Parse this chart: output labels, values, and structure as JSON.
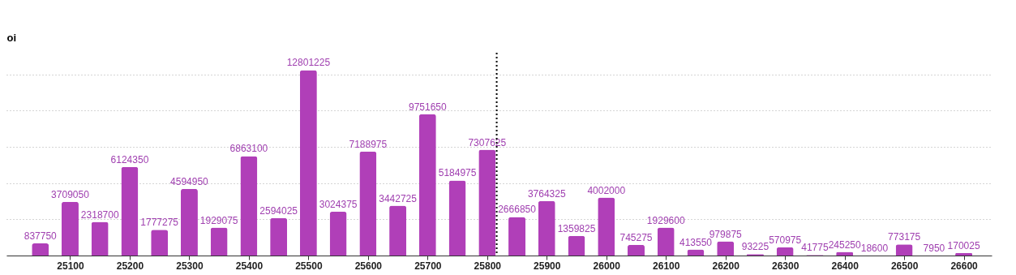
{
  "chart_data": {
    "type": "bar",
    "ylabel": "oi",
    "x": [
      25050,
      25100,
      25150,
      25200,
      25250,
      25300,
      25350,
      25400,
      25450,
      25500,
      25550,
      25600,
      25650,
      25700,
      25750,
      25800,
      25850,
      25900,
      25950,
      26000,
      26050,
      26100,
      26150,
      26200,
      26250,
      26300,
      26350,
      26400,
      26450,
      26500,
      26550,
      26600
    ],
    "values": [
      837750,
      3709050,
      2318700,
      6124350,
      1777275,
      4594950,
      1929075,
      6863100,
      2594025,
      12801225,
      3024375,
      7188975,
      3442725,
      9751650,
      5184975,
      7307625,
      2666850,
      3764325,
      1359825,
      4002000,
      745275,
      1929600,
      413550,
      979875,
      93225,
      570975,
      41775,
      245250,
      18600,
      773175,
      7950,
      170025
    ],
    "color": "#b03fb8",
    "data_labels": true,
    "xlim": [
      25000,
      26640
    ],
    "xticks": [
      25100,
      25200,
      25300,
      25400,
      25500,
      25600,
      25700,
      25800,
      25900,
      26000,
      26100,
      26200,
      26300,
      26400,
      26500,
      26600
    ],
    "ylim": [
      0,
      14000000
    ],
    "yticks": [
      {
        "value": 0,
        "label": null
      },
      {
        "value": 2500000,
        "label": null
      },
      {
        "value": 5000000,
        "label": null
      },
      {
        "value": 7500000,
        "label": null
      },
      {
        "value": 10000000,
        "label": null
      },
      {
        "value": 12500000,
        "label": null
      }
    ],
    "tick_labels": "x",
    "grid": "y",
    "ref_lines": [
      {
        "axis": "x",
        "value": 25816,
        "label": null,
        "color": "#000000",
        "line_style": "dotted"
      }
    ]
  }
}
